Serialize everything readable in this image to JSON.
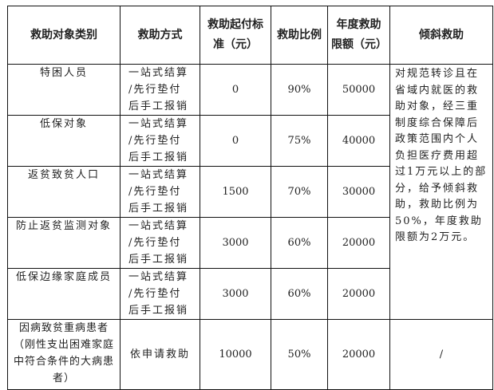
{
  "headers": [
    "救助对象类别",
    "救助方式",
    "救助起付标准（元）",
    "救助比例",
    "年度救助限额（元）",
    "倾斜救助"
  ],
  "method_lines": [
    "一站式结算",
    "/先行垫付",
    "后手工报销"
  ],
  "rows": [
    {
      "category": "特困人员",
      "threshold": "0",
      "ratio": "90%",
      "limit": "50000"
    },
    {
      "category": "低保对象",
      "threshold": "0",
      "ratio": "75%",
      "limit": "40000"
    },
    {
      "category": "返贫致贫人口",
      "threshold": "1500",
      "ratio": "70%",
      "limit": "30000"
    },
    {
      "category": "防止返贫监测对象",
      "threshold": "3000",
      "ratio": "60%",
      "limit": "20000"
    },
    {
      "category": "低保边缘家庭成员",
      "threshold": "3000",
      "ratio": "60%",
      "limit": "20000"
    },
    {
      "category": "因病致贫重病患者（刚性支出困难家庭中符合条件的大病患者）",
      "method": "依申请救助",
      "threshold": "10000",
      "ratio": "50%",
      "limit": "20000",
      "tilt": "/"
    }
  ],
  "tilt_text": "对规范转诊且在省域内就医的救助对象，经三重制度综合保障后政策范围内个人负担医疗费用超过1万元以上的部分，给予倾斜救助，救助比例为50%，年度救助限额为2万元。"
}
